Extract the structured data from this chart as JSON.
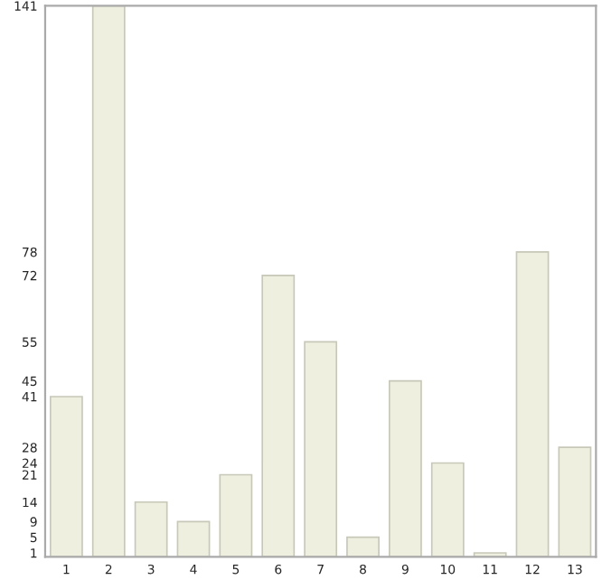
{
  "chart_data": {
    "type": "bar",
    "categories": [
      "1",
      "2",
      "3",
      "4",
      "5",
      "6",
      "7",
      "8",
      "9",
      "10",
      "11",
      "12",
      "13"
    ],
    "values": [
      41,
      141,
      14,
      9,
      21,
      72,
      55,
      5,
      45,
      24,
      1,
      78,
      28
    ],
    "color": "#efefdf",
    "ylim": [
      0,
      141
    ],
    "yticks": [
      1,
      5,
      9,
      14,
      21,
      24,
      28,
      41,
      45,
      55,
      72,
      78,
      141
    ],
    "grid": false,
    "legend": false
  }
}
